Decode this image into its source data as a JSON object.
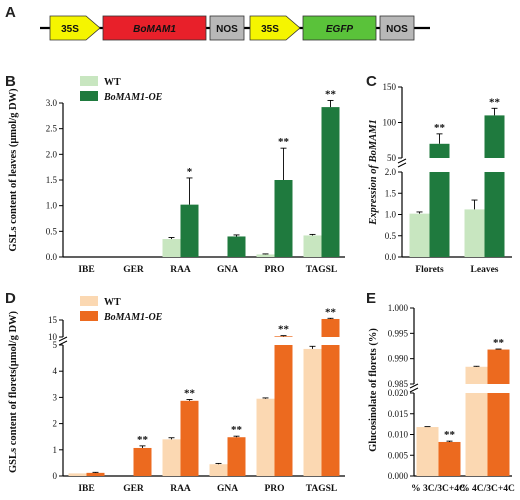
{
  "panels": {
    "A": "A",
    "B": "B",
    "C": "C",
    "D": "D",
    "E": "E"
  },
  "construct": {
    "elements": [
      {
        "label": "35S",
        "color": "#f5f500",
        "shape": "arrow",
        "italic": false
      },
      {
        "label": "BoMAM1",
        "color": "#e8202a",
        "shape": "box",
        "italic": true
      },
      {
        "label": "NOS",
        "color": "#b8b8b8",
        "shape": "box",
        "italic": false
      },
      {
        "label": "35S",
        "color": "#f5f500",
        "shape": "arrow",
        "italic": false
      },
      {
        "label": "EGFP",
        "color": "#5ac23a",
        "shape": "box",
        "italic": true
      },
      {
        "label": "NOS",
        "color": "#b8b8b8",
        "shape": "box",
        "italic": false
      }
    ]
  },
  "colors": {
    "B_wt": "#c8e6c0",
    "B_oe": "#1f7a3e",
    "D_wt": "#fbd8b2",
    "D_oe": "#ec6a1f"
  },
  "chart_data": [
    {
      "panel": "B",
      "type": "bar",
      "ylabel": "GSLs content of leaves (μmol/g DW)",
      "categories": [
        "IBE",
        "GER",
        "RAA",
        "GNA",
        "PRO",
        "TAGSL"
      ],
      "ylim": [
        0,
        3.0
      ],
      "yticks": [
        "0.0",
        "0.5",
        "1.0",
        "1.5",
        "2.0",
        "2.5",
        "3.0"
      ],
      "legend": "top-left",
      "series": [
        {
          "name": "WT",
          "values": [
            0,
            0,
            0.35,
            0,
            0.05,
            0.42
          ],
          "errors": [
            0,
            0,
            0.03,
            0,
            0.01,
            0.02
          ]
        },
        {
          "name": "BoMAM1-OE",
          "values": [
            0,
            0,
            1.02,
            0.4,
            1.5,
            2.92
          ],
          "errors": [
            0,
            0,
            0.52,
            0.03,
            0.62,
            0.13
          ]
        }
      ],
      "significance": [
        "",
        "",
        "*",
        "",
        "**",
        "**"
      ]
    },
    {
      "panel": "C",
      "type": "bar",
      "ylabel": "Expression of BoMAM1",
      "categories": [
        "Florets",
        "Leaves"
      ],
      "broken_axis": true,
      "lower_ticks": [
        "0.0",
        "0.5",
        "1.0",
        "1.5",
        "2.0"
      ],
      "upper_ticks": [
        "50",
        "100",
        "150"
      ],
      "series": [
        {
          "name": "WT",
          "values": [
            1.02,
            1.12
          ],
          "errors": [
            0.04,
            0.22
          ]
        },
        {
          "name": "BoMAM1-OE",
          "values": [
            70,
            110
          ],
          "errors": [
            14,
            10
          ]
        }
      ],
      "significance": [
        "**",
        "**"
      ]
    },
    {
      "panel": "D",
      "type": "bar",
      "ylabel": "GSLs content of florets(μmol/g DW)",
      "categories": [
        "IBE",
        "GER",
        "RAA",
        "GNA",
        "PRO",
        "TAGSL"
      ],
      "broken_axis": true,
      "lower_ticks": [
        "0",
        "1",
        "2",
        "3",
        "4",
        "5"
      ],
      "upper_ticks": [
        "10",
        "15"
      ],
      "legend": "top-left",
      "series": [
        {
          "name": "WT",
          "values": [
            0.1,
            0,
            1.4,
            0.45,
            2.95,
            4.85
          ],
          "errors": [
            0,
            0,
            0.06,
            0.03,
            0.03,
            0.1
          ]
        },
        {
          "name": "BoMAM1-OE",
          "values": [
            0.12,
            1.07,
            2.87,
            1.48,
            10.2,
            15.3
          ],
          "errors": [
            0.02,
            0.08,
            0.05,
            0.04,
            0.2,
            0.2
          ]
        }
      ],
      "significance": [
        "",
        "**",
        "**",
        "**",
        "**",
        "**"
      ]
    },
    {
      "panel": "E",
      "type": "bar",
      "ylabel": "Glucosinolate of florets (%)",
      "categories": [
        "% 3C/3C+4C",
        "% 4C/3C+4C"
      ],
      "broken_axis": true,
      "lower_ticks": [
        "0.000",
        "0.005",
        "0.010",
        "0.015",
        "0.020"
      ],
      "upper_ticks": [
        "0.985",
        "0.990",
        "0.995",
        "1.000"
      ],
      "series": [
        {
          "name": "WT",
          "values": [
            0.0118,
            0.9884
          ],
          "errors": [
            0.0001,
            0.0001
          ]
        },
        {
          "name": "BoMAM1-OE",
          "values": [
            0.0082,
            0.9918
          ],
          "errors": [
            0.0002,
            0.0001
          ]
        }
      ],
      "significance": [
        "**",
        "**"
      ]
    }
  ]
}
